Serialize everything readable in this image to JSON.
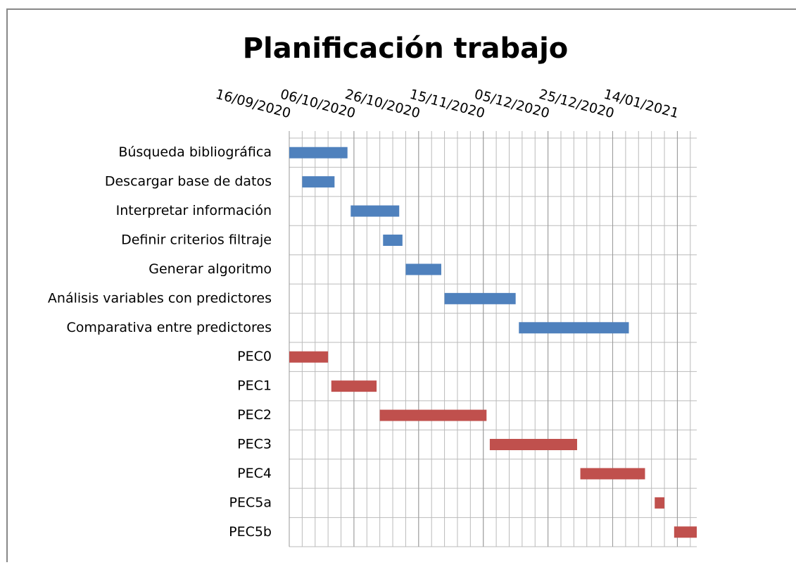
{
  "chart_data": {
    "type": "gantt",
    "title": "Planificación trabajo",
    "categories": [
      "Búsqueda bibliográfica",
      "Descargar base de datos",
      "Interpretar información",
      "Definir criterios filtraje",
      "Generar algoritmo",
      "Análisis variables con predictores",
      "Comparativa entre predictores",
      "PEC0",
      "PEC1",
      "PEC2",
      "PEC3",
      "PEC4",
      "PEC5a",
      "PEC5b"
    ],
    "start": [
      "2020-09-16",
      "2020-09-20",
      "2020-10-05",
      "2020-10-15",
      "2020-10-22",
      "2020-11-03",
      "2020-11-26",
      "2020-09-16",
      "2020-09-29",
      "2020-10-14",
      "2020-11-17",
      "2020-12-15",
      "2021-01-07",
      "2021-01-13"
    ],
    "end": [
      "2020-10-04",
      "2020-09-30",
      "2020-10-20",
      "2020-10-21",
      "2020-11-02",
      "2020-11-25",
      "2020-12-30",
      "2020-09-28",
      "2020-10-13",
      "2020-11-16",
      "2020-12-14",
      "2021-01-04",
      "2021-01-10",
      "2021-01-20"
    ],
    "colors": [
      "#4f81bd",
      "#4f81bd",
      "#4f81bd",
      "#4f81bd",
      "#4f81bd",
      "#4f81bd",
      "#4f81bd",
      "#c0504d",
      "#c0504d",
      "#c0504d",
      "#c0504d",
      "#c0504d",
      "#c0504d",
      "#c0504d"
    ],
    "xlim": [
      "2020-09-16",
      "2021-01-20"
    ],
    "xticks": [
      {
        "value": "2020-09-16",
        "label": "16/09/2020"
      },
      {
        "value": "2020-10-06",
        "label": "06/10/2020"
      },
      {
        "value": "2020-10-26",
        "label": "26/10/2020"
      },
      {
        "value": "2020-11-15",
        "label": "15/11/2020"
      },
      {
        "value": "2020-12-05",
        "label": "05/12/2020"
      },
      {
        "value": "2020-12-25",
        "label": "25/12/2020"
      },
      {
        "value": "2021-01-14",
        "label": "14/01/2021"
      }
    ],
    "grid_step_days": 4,
    "grid": true
  }
}
